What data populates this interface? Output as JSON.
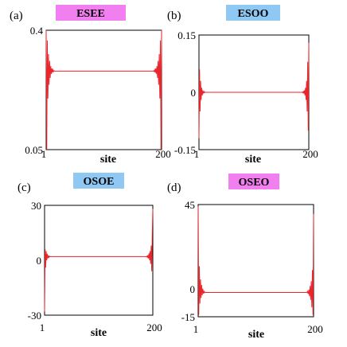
{
  "colors": {
    "line": "#e8262b",
    "pink_badge": "#f27ff0",
    "blue_badge": "#8ec8f3",
    "axis": "#000000"
  },
  "chart_data": [
    {
      "type": "line",
      "panel_label": "(a)",
      "badge": "ESEE",
      "badge_color": "#f27ff0",
      "xlabel": "site",
      "x_range": [
        1,
        200
      ],
      "x_ticks": [
        "1",
        "200"
      ],
      "ylim": [
        0.05,
        0.4
      ],
      "y_ticks": [
        "0.4",
        "0.05"
      ],
      "series": [
        {
          "baseline": 0.28,
          "left_edge": [
            0.4,
            0.05,
            0.37,
            0.2,
            0.33,
            0.24,
            0.31,
            0.26,
            0.295,
            0.272,
            0.288,
            0.276,
            0.284,
            0.279,
            0.281
          ],
          "right_edge": [
            0.281,
            0.279,
            0.284,
            0.276,
            0.288,
            0.272,
            0.295,
            0.26,
            0.31,
            0.24,
            0.33,
            0.2,
            0.37,
            0.05,
            0.4
          ]
        }
      ]
    },
    {
      "type": "line",
      "panel_label": "(b)",
      "badge": "ESOO",
      "badge_color": "#8ec8f3",
      "xlabel": "site",
      "x_range": [
        1,
        200
      ],
      "x_ticks": [
        "1",
        "200"
      ],
      "ylim": [
        -0.15,
        0.15
      ],
      "y_ticks": [
        "0.15",
        "0",
        "-0.15"
      ],
      "series": [
        {
          "baseline": 0.0,
          "left_edge": [
            -0.12,
            0.06,
            -0.05,
            0.03,
            -0.02,
            0.012,
            -0.008,
            0.005,
            -0.003,
            0.002,
            -0.001,
            0.0005
          ],
          "right_edge": [
            0.0005,
            -0.001,
            0.002,
            -0.003,
            0.005,
            -0.008,
            0.012,
            -0.02,
            0.03,
            -0.05,
            0.08,
            -0.1,
            0.13
          ]
        }
      ]
    },
    {
      "type": "line",
      "panel_label": "(c)",
      "badge": "OSOE",
      "badge_color": "#8ec8f3",
      "xlabel": "site",
      "x_range": [
        1,
        200
      ],
      "x_ticks": [
        "1",
        "200"
      ],
      "ylim": [
        -30,
        30
      ],
      "y_ticks": [
        "30",
        "0",
        "-30"
      ],
      "series": [
        {
          "baseline": 2.0,
          "left_edge": [
            -28,
            6,
            -4,
            5,
            0,
            3.5,
            1,
            2.6,
            1.6,
            2.2,
            1.9
          ],
          "right_edge": [
            1.9,
            2.2,
            1.6,
            2.8,
            1,
            3.8,
            0,
            5,
            -2,
            8,
            -6,
            14,
            28
          ]
        }
      ]
    },
    {
      "type": "line",
      "panel_label": "(d)",
      "badge": "OSEO",
      "badge_color": "#f27ff0",
      "xlabel": "site",
      "x_range": [
        1,
        200
      ],
      "x_ticks": [
        "1",
        "200"
      ],
      "ylim": [
        -15,
        45
      ],
      "y_ticks": [
        "45",
        "0",
        "-15"
      ],
      "series": [
        {
          "baseline": -2.0,
          "left_edge": [
            44,
            -14,
            12,
            -8,
            5,
            -5,
            2,
            -3.5,
            0,
            -2.6,
            -1.4,
            -2.2,
            -1.8
          ],
          "right_edge": [
            -1.8,
            -2.2,
            -1.4,
            -2.8,
            -0.5,
            -4,
            1.5,
            -6,
            4,
            -10,
            10,
            -14,
            40
          ]
        }
      ]
    }
  ]
}
